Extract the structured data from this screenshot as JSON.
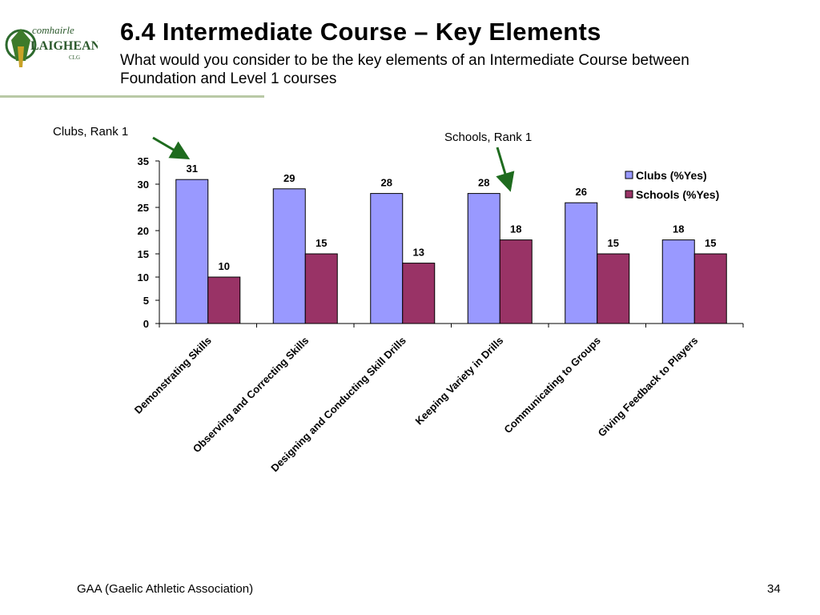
{
  "slide": {
    "title": "6.4 Intermediate Course – Key Elements",
    "subtitle": "What would you consider to be the key elements of an Intermediate Course between Foundation and Level 1 courses",
    "footer": "GAA (Gaelic Athletic Association)",
    "page_number": "34"
  },
  "logo": {
    "line1": "comhairle",
    "line2": "LAIGHEAN",
    "line3": "CLG"
  },
  "annotations": {
    "clubs": "Clubs, Rank 1",
    "schools": "Schools, Rank 1",
    "arrow_color": "#1e6b1e"
  },
  "chart_data": {
    "type": "bar",
    "categories": [
      "Demonstrating Skills",
      "Observing and Correcting Skills",
      "Designing and Conducting Skill Drills",
      "Keeping Variety in Drills",
      "Communicating to Groups",
      "Giving Feedback to Players"
    ],
    "series": [
      {
        "name": "Clubs (%Yes)",
        "values": [
          31,
          29,
          28,
          28,
          26,
          18
        ],
        "labels": [
          "31",
          "29",
          "28",
          "28",
          "26",
          "18"
        ],
        "color": "#9999ff"
      },
      {
        "name": "Schools (%Yes)",
        "values": [
          10,
          15,
          13,
          18,
          15,
          15
        ],
        "labels": [
          "10",
          "15",
          "13",
          "18",
          "15",
          "15"
        ],
        "color": "#993366"
      }
    ],
    "ylim": [
      0,
      35
    ],
    "yticks": [
      0,
      5,
      10,
      15,
      20,
      25,
      30,
      35
    ],
    "grid": false,
    "legend": "top-right"
  }
}
